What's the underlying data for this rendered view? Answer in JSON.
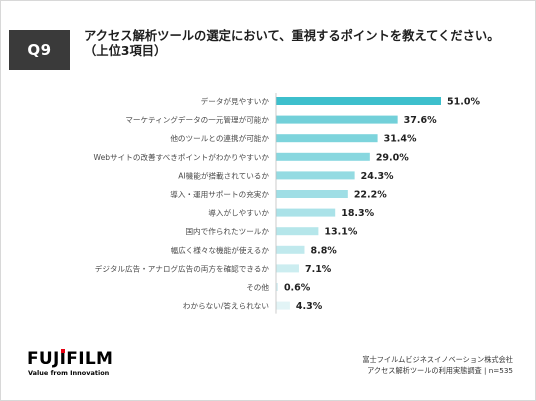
{
  "header": {
    "question_no": "Q9",
    "title_line1": "アクセス解析ツールの選定において、重視するポイントを教えてください。",
    "title_line2": "（上位3項目）"
  },
  "chart_data": {
    "type": "bar",
    "orientation": "horizontal",
    "categories": [
      "データが見やすいか",
      "マーケティングデータの一元管理が可能か",
      "他のツールとの連携が可能か",
      "Webサイトの改善すべきポイントがわかりやすいか",
      "AI機能が搭載されているか",
      "導入・運用サポートの充実か",
      "導入がしやすいか",
      "国内で作られたツールか",
      "幅広く様々な機能が使えるか",
      "デジタル広告・アナログ広告の両方を確認できるか",
      "その他",
      "わからない/答えられない"
    ],
    "values": [
      51.0,
      37.6,
      31.4,
      29.0,
      24.3,
      22.2,
      18.3,
      13.1,
      8.8,
      7.1,
      0.6,
      4.3
    ],
    "value_labels": [
      "51.0%",
      "37.6%",
      "31.4%",
      "29.0%",
      "24.3%",
      "22.2%",
      "18.3%",
      "13.1%",
      "8.8%",
      "7.1%",
      "0.6%",
      "4.3%"
    ],
    "unit": "%",
    "xlim": [
      0,
      51
    ],
    "grid": false,
    "colors": {
      "highlight": "#3dbfcc",
      "gradient_start": "#72d0d9",
      "gradient_end": "#e2f4f6",
      "label": "#4a4a4a",
      "value": "#222222"
    }
  },
  "footer": {
    "logo_text_left": "FUJ",
    "logo_text_i": "I",
    "logo_text_right": "FILM",
    "tagline": "Value from Innovation",
    "source_line1": "富士フイルムビジネスイノベーション株式会社",
    "source_line2": "アクセス解析ツールの利用実態調査 | n=535",
    "logo_red": "#e60012"
  }
}
